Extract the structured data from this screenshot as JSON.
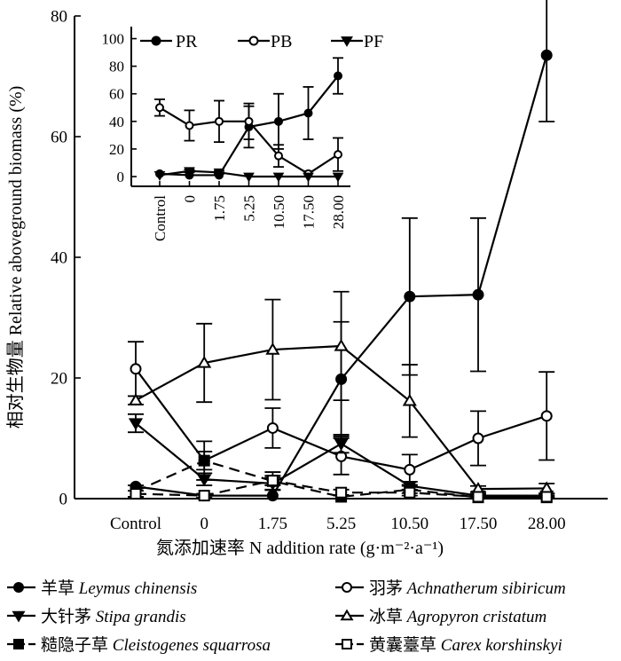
{
  "chart_data": [
    {
      "type": "line",
      "xlabel": "氮添加速率 N addition rate (g·m⁻²·a⁻¹)",
      "ylabel": "相对生物量 Relative aboveground biomass (%)",
      "categories": [
        "Control",
        "0",
        "1.75",
        "5.25",
        "10.50",
        "17.50",
        "28.00"
      ],
      "ylim": [
        0,
        80
      ],
      "yticks": [
        "0",
        "20",
        "40",
        "60",
        "80"
      ],
      "legend_position": "bottom",
      "series": [
        {
          "name": "羊草 Leymus chinensis",
          "name_cn": "羊草",
          "name_latin": "Leymus chinensis",
          "marker": "circle-filled",
          "dash": false,
          "values": [
            2,
            0.5,
            0.5,
            19.8,
            33.5,
            33.8,
            73.5
          ],
          "errors": [
            0,
            0,
            0,
            9.5,
            13,
            12.7,
            11
          ]
        },
        {
          "name": "羽茅 Achnatherum sibiricum",
          "name_cn": "羽茅",
          "name_latin": "Achnatherum sibiricum",
          "marker": "circle-open",
          "dash": false,
          "values": [
            21.5,
            6.3,
            11.7,
            7,
            4.8,
            10,
            13.7
          ],
          "errors": [
            4.5,
            3.2,
            3.3,
            3,
            2.5,
            4.5,
            7.3
          ]
        },
        {
          "name": "大针茅 Stipa grandis",
          "name_cn": "大针茅",
          "name_latin": "Stipa grandis",
          "marker": "triangle-down-filled",
          "dash": false,
          "values": [
            12.5,
            3.2,
            2.5,
            9.1,
            2.1,
            0.5,
            0.5
          ],
          "errors": [
            1.5,
            1,
            1,
            1.5,
            0.7,
            0.3,
            0.3
          ]
        },
        {
          "name": "冰草 Agropyron cristatum",
          "name_cn": "冰草",
          "name_latin": "Agropyron cristatum",
          "marker": "triangle-up-open",
          "dash": false,
          "values": [
            16.3,
            22.5,
            24.7,
            25.3,
            16.2,
            1.6,
            1.7
          ],
          "errors": [
            0.7,
            6.5,
            8.3,
            9,
            6,
            0.5,
            0.8
          ]
        },
        {
          "name": "糙隐子草 Cleistogenes squarrosa",
          "name_cn": "糙隐子草",
          "name_latin": "Cleistogenes squarrosa",
          "marker": "square-filled",
          "dash": true,
          "values": [
            1.2,
            6.3,
            2.9,
            0.3,
            1.5,
            0.2,
            0.2
          ],
          "errors": [
            1,
            1.5,
            1.5,
            0.3,
            0.6,
            0.2,
            0.2
          ]
        },
        {
          "name": "黄囊薹草 Carex korshinskyi",
          "name_cn": "黄囊薹草",
          "name_latin": "Carex korshinskyi",
          "marker": "square-open",
          "dash": true,
          "values": [
            0.8,
            0.5,
            3,
            1,
            1,
            0.3,
            0.3
          ],
          "errors": [
            0.5,
            0.3,
            0.8,
            0.5,
            0.5,
            0.2,
            0.2
          ]
        }
      ]
    },
    {
      "type": "line",
      "categories": [
        "Control",
        "0",
        "1.75",
        "5.25",
        "10.50",
        "17.50",
        "28.00"
      ],
      "ylim": [
        0,
        110
      ],
      "yticks": [
        "0",
        "20",
        "40",
        "60",
        "80",
        "100"
      ],
      "legend_position": "top",
      "series": [
        {
          "name": "PR",
          "marker": "circle-filled",
          "values": [
            2,
            1,
            1,
            36,
            40,
            46,
            73
          ],
          "errors": [
            0,
            0,
            0,
            15,
            20,
            19,
            13
          ]
        },
        {
          "name": "PB",
          "marker": "circle-open",
          "values": [
            50,
            37,
            40,
            40,
            15,
            2,
            16
          ],
          "errors": [
            6,
            11,
            15,
            13,
            8,
            2,
            12
          ]
        },
        {
          "name": "PF",
          "marker": "triangle-down-filled",
          "values": [
            1,
            4,
            3,
            0,
            0,
            0,
            0
          ],
          "errors": [
            0,
            1,
            1,
            0,
            0,
            0,
            0
          ]
        }
      ]
    }
  ]
}
